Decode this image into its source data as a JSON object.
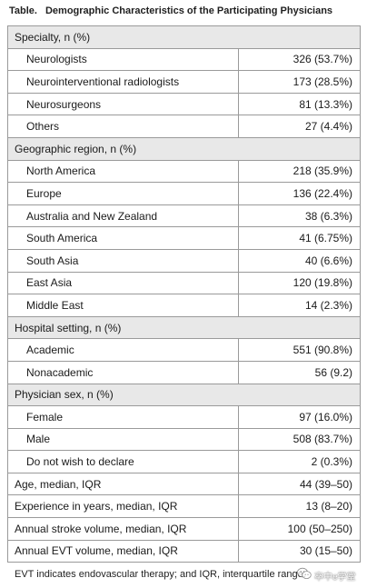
{
  "table": {
    "label": "Table.",
    "title": "Demographic Characteristics of the Participating Physicians",
    "groups": [
      {
        "header": "Specialty, n (%)",
        "rows": [
          {
            "label": "Neurologists",
            "value": "326 (53.7%)"
          },
          {
            "label": "Neurointerventional radiologists",
            "value": "173 (28.5%)"
          },
          {
            "label": "Neurosurgeons",
            "value": "81 (13.3%)"
          },
          {
            "label": "Others",
            "value": "27 (4.4%)"
          }
        ]
      },
      {
        "header": "Geographic region, n (%)",
        "rows": [
          {
            "label": "North America",
            "value": "218 (35.9%)"
          },
          {
            "label": "Europe",
            "value": "136 (22.4%)"
          },
          {
            "label": "Australia and New Zealand",
            "value": "38 (6.3%)"
          },
          {
            "label": "South America",
            "value": "41 (6.75%)"
          },
          {
            "label": "South Asia",
            "value": "40 (6.6%)"
          },
          {
            "label": "East Asia",
            "value": "120 (19.8%)"
          },
          {
            "label": "Middle East",
            "value": "14 (2.3%)"
          }
        ]
      },
      {
        "header": "Hospital setting, n (%)",
        "rows": [
          {
            "label": "Academic",
            "value": "551 (90.8%)"
          },
          {
            "label": "Nonacademic",
            "value": "56 (9.2)"
          }
        ]
      },
      {
        "header": "Physician sex, n (%)",
        "rows": [
          {
            "label": "Female",
            "value": "97 (16.0%)"
          },
          {
            "label": "Male",
            "value": "508 (83.7%)"
          },
          {
            "label": "Do not wish to declare",
            "value": "2 (0.3%)"
          }
        ]
      }
    ],
    "summary_rows": [
      {
        "label": "Age, median, IQR",
        "value": "44 (39–50)"
      },
      {
        "label": "Experience in years, median, IQR",
        "value": "13 (8–20)"
      },
      {
        "label": "Annual stroke volume, median, IQR",
        "value": "100 (50–250)"
      },
      {
        "label": "Annual EVT volume, median, IQR",
        "value": "30 (15–50)"
      }
    ]
  },
  "footnote": "EVT indicates endovascular therapy; and IQR, interquartile range.",
  "watermark": {
    "text": "卒中e学堂",
    "icon": "wechat-icon"
  }
}
